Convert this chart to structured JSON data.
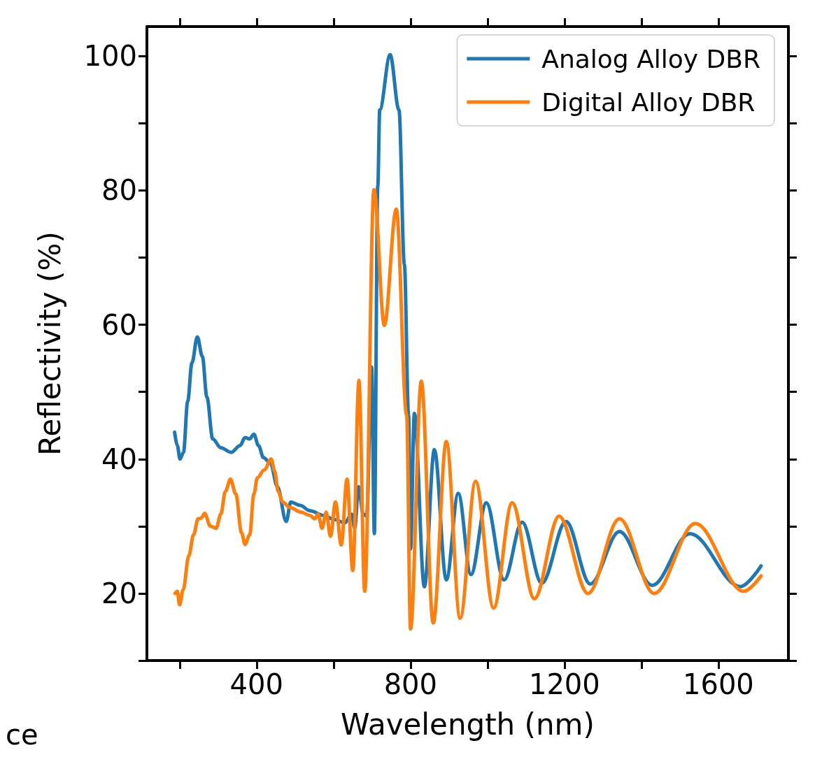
{
  "chart_data": {
    "type": "line",
    "xlabel": "Wavelength (nm)",
    "ylabel": "Reflectivity (%)",
    "xlim": [
      115,
      1782
    ],
    "ylim": [
      10,
      104.4
    ],
    "xticks": [
      {
        "value": 200,
        "label": null
      },
      400,
      {
        "value": 600,
        "label": null
      },
      800,
      {
        "value": 1000,
        "label": null
      },
      1200,
      {
        "value": 1400,
        "label": null
      },
      1600
    ],
    "yticks": [
      {
        "value": 10,
        "label": null
      },
      20,
      {
        "value": 30,
        "label": null
      },
      40,
      {
        "value": 50,
        "label": null
      },
      60,
      {
        "value": 70,
        "label": null
      },
      80,
      {
        "value": 90,
        "label": null
      },
      100
    ],
    "legend": "top right",
    "grid": false,
    "marker": "none",
    "line_style": "solid",
    "annotations": [
      "ce"
    ],
    "series": [
      {
        "name": "Analog Alloy DBR",
        "color": "#1f77b4",
        "x": [
          187,
          194,
          201,
          210,
          221,
          232,
          246,
          259,
          271,
          286,
          307,
          334,
          357,
          370,
          382,
          393,
          405,
          418,
          436,
          454,
          477,
          489,
          513,
          539,
          575,
          602,
          629,
          647,
          655,
          665,
          677,
          686,
          699,
          706,
          715,
          720,
          747,
          770,
          784,
          795,
          800,
          810,
          836,
          862,
          893,
          924,
          957,
          997,
          1043,
          1090,
          1141,
          1204,
          1267,
          1343,
          1428,
          1526,
          1657,
          1711
        ],
        "values": [
          44,
          42,
          40,
          41,
          48.6,
          54.3,
          58.2,
          55.3,
          49.2,
          43,
          41.7,
          41,
          42,
          43.2,
          43,
          43.7,
          42,
          40.2,
          39.4,
          35.9,
          30.7,
          33.6,
          33.1,
          32.3,
          31.6,
          31,
          30.5,
          31.8,
          29.7,
          35.9,
          31.8,
          31.5,
          53.7,
          28.9,
          80.7,
          92,
          100.2,
          92,
          69,
          46.5,
          26.6,
          46.8,
          21,
          41.4,
          22,
          34.9,
          22.8,
          33.5,
          22,
          30.6,
          21.5,
          30.7,
          21.4,
          29.2,
          21.2,
          28.9,
          21,
          24.1
        ]
      },
      {
        "name": "Digital Alloy DBR",
        "color": "#ff7f0e",
        "x": [
          188,
          194,
          200,
          209,
          224,
          236,
          248,
          256,
          265,
          280,
          295,
          307,
          319,
          332,
          346,
          361,
          370,
          382,
          393,
          402,
          420,
          438,
          447,
          456,
          468,
          486,
          516,
          539,
          551,
          560,
          570,
          581,
          592,
          605,
          620,
          635,
          650,
          666,
          681,
          705,
          732,
          763,
          790,
          800,
          828,
          859,
          893,
          929,
          969,
          1016,
          1064,
          1122,
          1186,
          1261,
          1343,
          1433,
          1540,
          1666,
          1711
        ],
        "values": [
          20,
          20.3,
          18.3,
          20.5,
          25.6,
          28.7,
          31.1,
          31.2,
          31.9,
          30,
          29.7,
          31.8,
          35.2,
          37,
          34.8,
          29,
          27.3,
          28.7,
          34.8,
          37.2,
          38.4,
          40,
          38.2,
          35.2,
          33.6,
          32.8,
          32.1,
          31.6,
          31.1,
          31.8,
          29.7,
          32.1,
          28.5,
          33.6,
          27.2,
          37,
          23.4,
          51.7,
          20.3,
          80.1,
          59.9,
          77.2,
          46.5,
          14.7,
          51.6,
          15.6,
          42.6,
          16.3,
          36.7,
          17.8,
          33.5,
          19.2,
          31.5,
          20,
          31.1,
          20,
          30.4,
          20.3,
          22.6
        ]
      }
    ]
  }
}
